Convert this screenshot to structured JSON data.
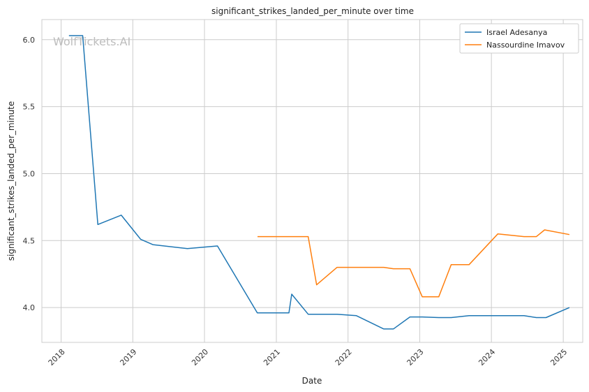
{
  "chart_data": {
    "type": "line",
    "title": "significant_strikes_landed_per_minute over time",
    "xlabel": "Date",
    "ylabel": "significant_strikes_landed_per_minute",
    "watermark": "WolfTickets.AI",
    "xlim": [
      "2017-09-25",
      "2025-04-10"
    ],
    "ylim": [
      3.74,
      6.15
    ],
    "x_ticks": [
      "2018",
      "2019",
      "2020",
      "2021",
      "2022",
      "2023",
      "2024",
      "2025"
    ],
    "y_ticks": [
      "4.0",
      "4.5",
      "5.0",
      "5.5",
      "6.0"
    ],
    "grid": true,
    "legend_position": "top-right",
    "colors": {
      "Israel Adesanya": "#1f77b4",
      "Nassourdine Imavov": "#ff7f0e"
    },
    "series": [
      {
        "name": "Israel Adesanya",
        "color": "#1f77b4",
        "points": [
          {
            "x": "2018-02-10",
            "y": 6.03
          },
          {
            "x": "2018-04-21",
            "y": 6.03
          },
          {
            "x": "2018-07-07",
            "y": 4.62
          },
          {
            "x": "2018-11-03",
            "y": 4.69
          },
          {
            "x": "2019-02-10",
            "y": 4.51
          },
          {
            "x": "2019-04-13",
            "y": 4.47
          },
          {
            "x": "2019-10-06",
            "y": 4.44
          },
          {
            "x": "2020-03-07",
            "y": 4.46
          },
          {
            "x": "2020-09-26",
            "y": 3.96
          },
          {
            "x": "2021-03-06",
            "y": 3.96
          },
          {
            "x": "2021-03-20",
            "y": 4.1
          },
          {
            "x": "2021-06-12",
            "y": 3.95
          },
          {
            "x": "2021-11-06",
            "y": 3.95
          },
          {
            "x": "2022-02-12",
            "y": 3.94
          },
          {
            "x": "2022-07-02",
            "y": 3.84
          },
          {
            "x": "2022-08-20",
            "y": 3.84
          },
          {
            "x": "2022-11-12",
            "y": 3.93
          },
          {
            "x": "2023-01-15",
            "y": 3.93
          },
          {
            "x": "2023-04-08",
            "y": 3.925
          },
          {
            "x": "2023-06-10",
            "y": 3.925
          },
          {
            "x": "2023-09-09",
            "y": 3.94
          },
          {
            "x": "2024-02-17",
            "y": 3.94
          },
          {
            "x": "2024-06-15",
            "y": 3.94
          },
          {
            "x": "2024-08-17",
            "y": 3.925
          },
          {
            "x": "2024-10-05",
            "y": 3.925
          },
          {
            "x": "2025-02-01",
            "y": 4.0
          }
        ]
      },
      {
        "name": "Nassourdine Imavov",
        "color": "#ff7f0e",
        "points": [
          {
            "x": "2020-09-27",
            "y": 4.53
          },
          {
            "x": "2021-06-12",
            "y": 4.53
          },
          {
            "x": "2021-07-25",
            "y": 4.17
          },
          {
            "x": "2021-11-06",
            "y": 4.3
          },
          {
            "x": "2022-07-02",
            "y": 4.3
          },
          {
            "x": "2022-08-20",
            "y": 4.29
          },
          {
            "x": "2022-11-12",
            "y": 4.29
          },
          {
            "x": "2023-01-14",
            "y": 4.08
          },
          {
            "x": "2023-04-08",
            "y": 4.08
          },
          {
            "x": "2023-06-10",
            "y": 4.32
          },
          {
            "x": "2023-09-09",
            "y": 4.32
          },
          {
            "x": "2024-02-03",
            "y": 4.55
          },
          {
            "x": "2024-06-15",
            "y": 4.53
          },
          {
            "x": "2024-08-17",
            "y": 4.53
          },
          {
            "x": "2024-09-28",
            "y": 4.58
          },
          {
            "x": "2025-02-01",
            "y": 4.545
          }
        ]
      }
    ]
  }
}
